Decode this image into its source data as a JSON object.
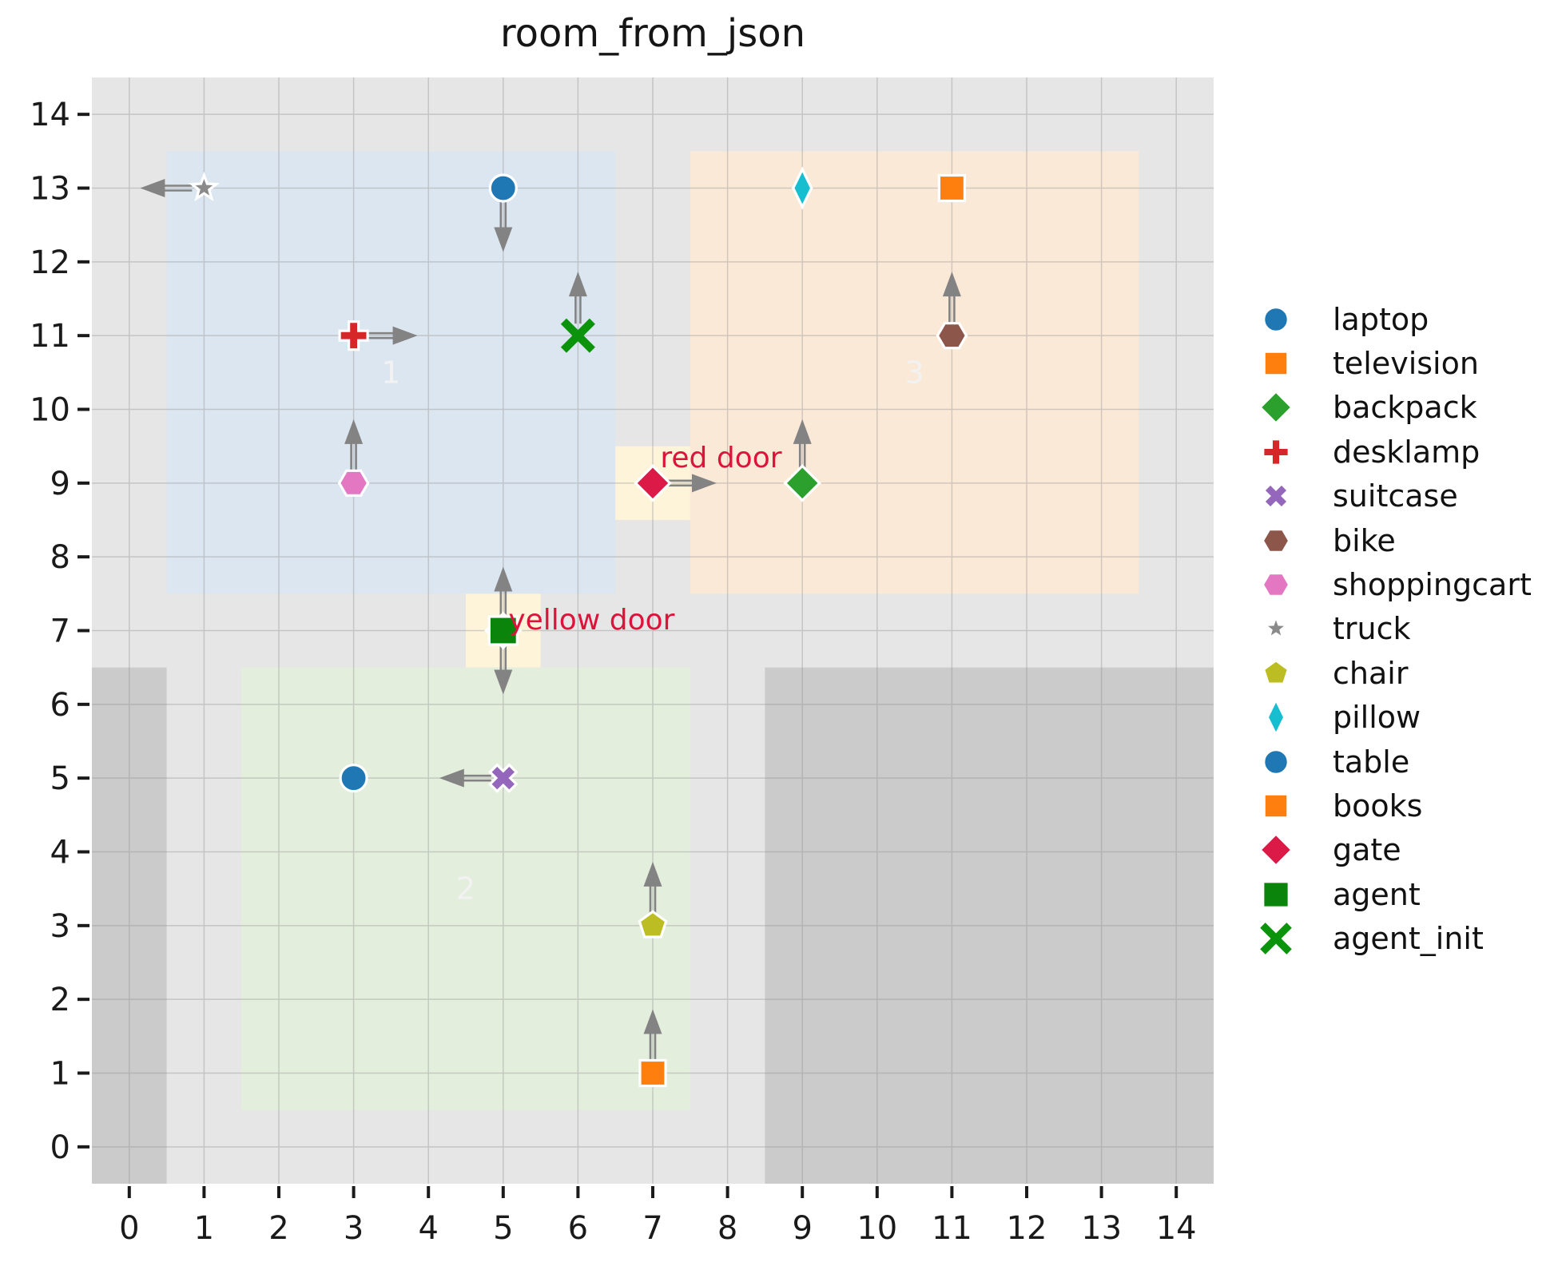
{
  "title": "room_from_json",
  "colors": {
    "background": "#ffffff",
    "plot_bg": "#e6e6e6",
    "blocked": "#cbcbcb",
    "grid": "#8f8f8f",
    "arrow": "#838383",
    "marker_edge": "#ffffff",
    "room_label": "#f2f2f2",
    "door_label": "#dc143c",
    "tick": "#1a1a1a",
    "text": "#111111",
    "room1": "#dce6f0",
    "room2": "#e4eedd",
    "room3": "#fbe9d8",
    "door_cell": "#fdf4d9"
  },
  "chart_data": {
    "type": "scatter",
    "title": "room_from_json",
    "xlim": [
      -0.5,
      14.5
    ],
    "ylim": [
      -0.5,
      14.5
    ],
    "xticks": [
      0,
      1,
      2,
      3,
      4,
      5,
      6,
      7,
      8,
      9,
      10,
      11,
      12,
      13,
      14
    ],
    "yticks": [
      0,
      1,
      2,
      3,
      4,
      5,
      6,
      7,
      8,
      9,
      10,
      11,
      12,
      13,
      14
    ],
    "grid": true,
    "legend_position": "right-outside",
    "rooms": [
      {
        "id": "1",
        "label": "1",
        "x_min": 0.5,
        "y_min": 7.5,
        "x_max": 6.5,
        "y_max": 13.5,
        "label_x": 3.5,
        "label_y": 10.5,
        "color_key": "room1"
      },
      {
        "id": "2",
        "label": "2",
        "x_min": 1.5,
        "y_min": 0.5,
        "x_max": 7.5,
        "y_max": 6.5,
        "label_x": 4.5,
        "label_y": 3.5,
        "color_key": "room2"
      },
      {
        "id": "3",
        "label": "3",
        "x_min": 7.5,
        "y_min": 7.5,
        "x_max": 13.5,
        "y_max": 13.5,
        "label_x": 10.5,
        "label_y": 10.5,
        "color_key": "room3"
      }
    ],
    "blocked_regions": [
      {
        "x_min": -0.5,
        "y_min": -0.5,
        "x_max": 0.5,
        "y_max": 6.5
      },
      {
        "x_min": 8.5,
        "y_min": -0.5,
        "x_max": 14.5,
        "y_max": 6.5
      }
    ],
    "doors": [
      {
        "name": "yellow door",
        "x": 5,
        "y": 7,
        "cell": [
          4.5,
          6.5,
          5.5,
          7.5
        ],
        "marker": "diamond",
        "color": "#dc1a47",
        "dir": "down",
        "label_x": 5.07,
        "label_y": 7.14
      },
      {
        "name": "red door",
        "x": 7,
        "y": 9,
        "cell": [
          6.5,
          8.5,
          7.5,
          9.5
        ],
        "marker": "diamond",
        "color": "#dc1a47",
        "dir": "right",
        "label_x": 7.1,
        "label_y": 9.34
      }
    ],
    "objects": [
      {
        "name": "truck",
        "marker": "star",
        "color": "#8a8a8a",
        "x": 1,
        "y": 13,
        "dir": "left"
      },
      {
        "name": "laptop",
        "marker": "circle",
        "color": "#1f77b4",
        "x": 5,
        "y": 13,
        "dir": "down"
      },
      {
        "name": "pillow",
        "marker": "thin_diamond",
        "color": "#17becf",
        "x": 9,
        "y": 13,
        "dir": null
      },
      {
        "name": "television",
        "marker": "square",
        "color": "#ff7f0e",
        "x": 11,
        "y": 13,
        "dir": null
      },
      {
        "name": "desklamp",
        "marker": "plus",
        "color": "#d62728",
        "x": 3,
        "y": 11,
        "dir": "right"
      },
      {
        "name": "agent_init",
        "marker": "x_line",
        "color": "#0c930c",
        "x": 6,
        "y": 11,
        "dir": "up"
      },
      {
        "name": "bike",
        "marker": "hexagon",
        "color": "#8c564b",
        "x": 11,
        "y": 11,
        "dir": "up"
      },
      {
        "name": "shoppingcart",
        "marker": "hexagon",
        "color": "#e377c2",
        "x": 3,
        "y": 9,
        "dir": "up"
      },
      {
        "name": "backpack",
        "marker": "diamond",
        "color": "#2ca02c",
        "x": 9,
        "y": 9,
        "dir": "up"
      },
      {
        "name": "table",
        "marker": "circle",
        "color": "#1f77b4",
        "x": 3,
        "y": 5,
        "dir": null
      },
      {
        "name": "suitcase",
        "marker": "x_filled",
        "color": "#9467bd",
        "x": 5,
        "y": 5,
        "dir": "left"
      },
      {
        "name": "chair",
        "marker": "pentagon",
        "color": "#bcbd22",
        "x": 7,
        "y": 3,
        "dir": "up"
      },
      {
        "name": "books",
        "marker": "square",
        "color": "#ff7f0e",
        "x": 7,
        "y": 1,
        "dir": "up"
      },
      {
        "name": "agent",
        "marker": "square_large",
        "color": "#0a840a",
        "x": 5,
        "y": 7,
        "dir": "up"
      }
    ],
    "legend": [
      {
        "label": "laptop",
        "marker": "circle",
        "color": "#1f77b4"
      },
      {
        "label": "television",
        "marker": "square",
        "color": "#ff7f0e"
      },
      {
        "label": "backpack",
        "marker": "diamond",
        "color": "#2ca02c"
      },
      {
        "label": "desklamp",
        "marker": "plus",
        "color": "#d62728"
      },
      {
        "label": "suitcase",
        "marker": "x_filled",
        "color": "#9467bd"
      },
      {
        "label": "bike",
        "marker": "hexagon",
        "color": "#8c564b"
      },
      {
        "label": "shoppingcart",
        "marker": "hexagon",
        "color": "#e377c2"
      },
      {
        "label": "truck",
        "marker": "star",
        "color": "#8a8a8a"
      },
      {
        "label": "chair",
        "marker": "pentagon",
        "color": "#bcbd22"
      },
      {
        "label": "pillow",
        "marker": "thin_diamond",
        "color": "#17becf"
      },
      {
        "label": "table",
        "marker": "circle",
        "color": "#1f77b4"
      },
      {
        "label": "books",
        "marker": "square",
        "color": "#ff7f0e"
      },
      {
        "label": "gate",
        "marker": "diamond",
        "color": "#dc1a47"
      },
      {
        "label": "agent",
        "marker": "square_large",
        "color": "#0a840a"
      },
      {
        "label": "agent_init",
        "marker": "x_line",
        "color": "#0c930c"
      }
    ]
  }
}
